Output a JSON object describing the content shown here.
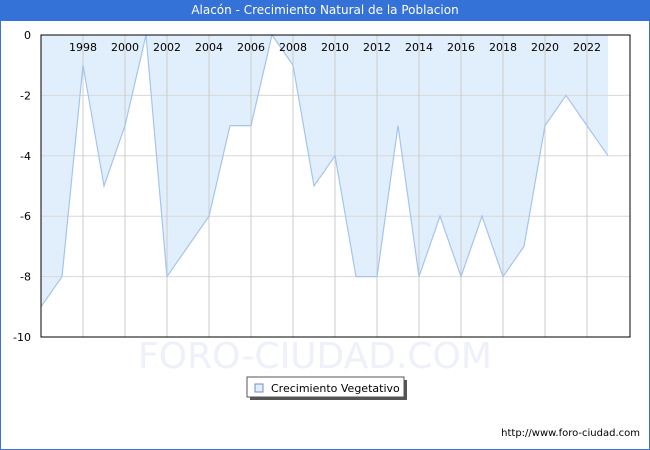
{
  "header": {
    "title": "Alacón - Crecimiento Natural de la Poblacion"
  },
  "watermark": "FORO-CIUDAD.COM",
  "footer": {
    "url": "http://www.foro-ciudad.com"
  },
  "legend": {
    "label": "Crecimiento Vegetativo"
  },
  "colors": {
    "titlebar": "#3572d8",
    "fill": "#e1effd",
    "line": "#a5c4ee",
    "grid": "#d8d8d8"
  },
  "chart_data": {
    "type": "area",
    "title": "Alacón - Crecimiento Natural de la Poblacion",
    "xlabel": "",
    "ylabel": "",
    "ylim": [
      -10,
      0
    ],
    "yticks": [
      0,
      -2,
      -4,
      -6,
      -8,
      -10
    ],
    "xticks": [
      1998,
      2000,
      2002,
      2004,
      2006,
      2008,
      2010,
      2012,
      2014,
      2016,
      2018,
      2020,
      2022
    ],
    "x": [
      1996,
      1997,
      1998,
      1999,
      2000,
      2001,
      2002,
      2003,
      2004,
      2005,
      2006,
      2007,
      2008,
      2009,
      2010,
      2011,
      2012,
      2013,
      2014,
      2015,
      2016,
      2017,
      2018,
      2019,
      2020,
      2021,
      2022,
      2023
    ],
    "series": [
      {
        "name": "Crecimiento Vegetativo",
        "values": [
          -9,
          -8,
          -1,
          -5,
          -3,
          0,
          -8,
          -7,
          -6,
          -3,
          -3,
          0,
          -1,
          -5,
          -4,
          -8,
          -8,
          -3,
          -8,
          -6,
          -8,
          -6,
          -8,
          -7,
          -3,
          -2,
          -3,
          -4
        ]
      }
    ],
    "legend_position": "bottom",
    "grid": true
  }
}
